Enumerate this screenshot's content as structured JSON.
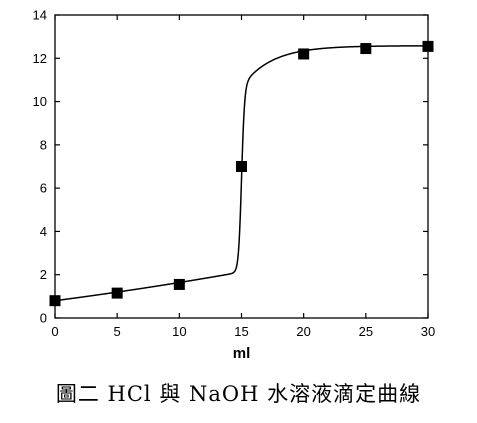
{
  "caption": "圖二 HCl 與 NaOH 水溶液滴定曲線",
  "chart_data": {
    "type": "scatter",
    "title": "",
    "xlabel": "ml",
    "ylabel": "",
    "xlim": [
      0,
      30
    ],
    "ylim": [
      0,
      14
    ],
    "xticks": [
      0,
      5,
      10,
      15,
      20,
      25,
      30
    ],
    "yticks": [
      0,
      2,
      4,
      6,
      8,
      10,
      12,
      14
    ],
    "grid": false,
    "legend": "none",
    "series": [
      {
        "marker": "square",
        "x": [
          0,
          5,
          10,
          15,
          20,
          25,
          30
        ],
        "y": [
          0.8,
          1.15,
          1.55,
          7.0,
          12.2,
          12.45,
          12.55
        ]
      }
    ],
    "fit_curve": true
  }
}
